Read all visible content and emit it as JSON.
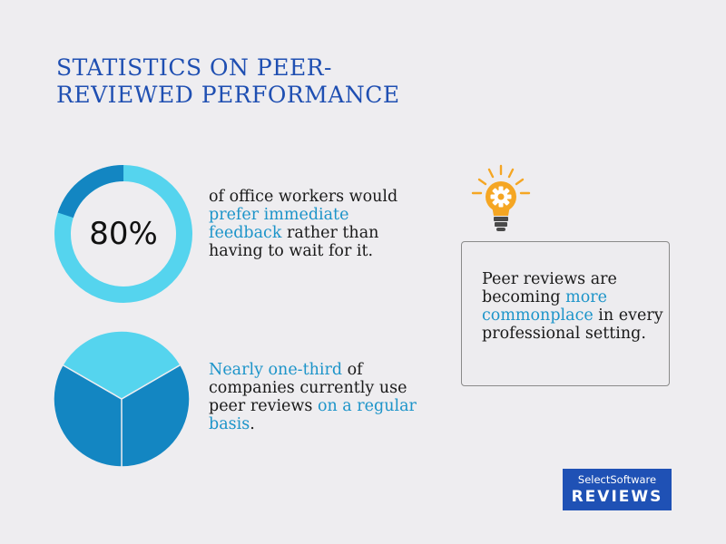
{
  "title": "STATISTICS ON PEER-REVIEWED PERFORMANCE",
  "stat1": {
    "value_label": "80%",
    "percent": 80,
    "text_before": "of office workers would ",
    "highlight": "prefer immediate feedback",
    "text_after": " rather than having to wait for it."
  },
  "stat2": {
    "fraction": 0.333,
    "highlight1": "Nearly one-third",
    "text_middle": " of companies currently use peer reviews ",
    "highlight2": "on a regular basis",
    "text_after": "."
  },
  "callout": {
    "icon": "lightbulb-gear-icon",
    "text_before": "Peer reviews are becoming ",
    "highlight": "more commonplace",
    "text_after": " in every professional setting."
  },
  "logo": {
    "top": "SelectSoftware",
    "bottom": "REVIEWS"
  },
  "colors": {
    "title": "#1f4fb2",
    "accent_light": "#55d4ee",
    "accent_dark": "#1386c2",
    "highlight_text": "#1c94c9",
    "logo_bg": "#1f51b5",
    "bulb": "#f5a623"
  }
}
